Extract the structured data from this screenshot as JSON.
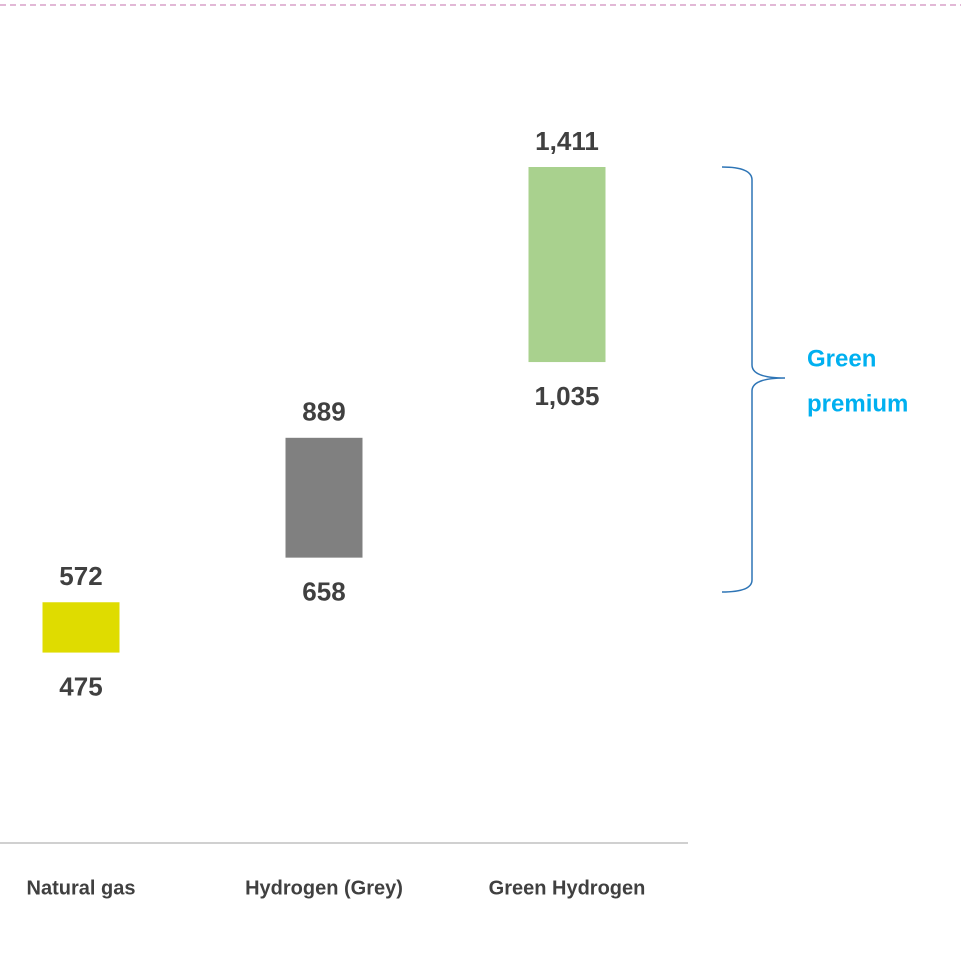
{
  "chart_data": {
    "type": "floating_bar",
    "categories": [
      "Natural gas",
      "Hydrogen (Grey)",
      "Green Hydrogen"
    ],
    "low": {
      "values": [
        475,
        658,
        1035
      ],
      "value_labels": [
        "475",
        "658",
        "1,035"
      ]
    },
    "high": {
      "values": [
        572,
        889,
        1411
      ],
      "value_labels": [
        "572",
        "889",
        "1,411"
      ]
    },
    "colors": [
      "#dfdc00",
      "#808080",
      "#a9d18e"
    ],
    "annotation": [
      "Green",
      "premium"
    ],
    "annotation_color": "#00b0f0"
  }
}
